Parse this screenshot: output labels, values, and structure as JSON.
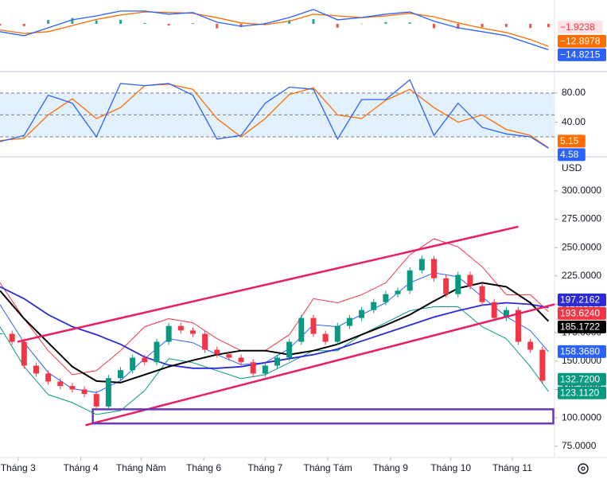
{
  "chart_data": [
    {
      "type": "line",
      "ylim": [
        -26.4,
        13.6
      ],
      "series": [
        {
          "name": "Histogram",
          "kind": "histogram",
          "color": "#f23645",
          "color_up": "#26a69a",
          "color_down": "#ef5350",
          "flag_style": "light",
          "x": [
            0,
            2,
            4,
            6,
            8,
            10,
            12,
            14,
            16,
            18,
            20,
            22,
            24,
            26,
            28,
            30,
            32,
            34,
            36,
            38,
            40,
            42,
            44,
            45.5
          ],
          "values": [
            -1,
            -1.3,
            2.2,
            3.3,
            2,
            2.3,
            0.5,
            -1,
            0.4,
            -2.6,
            -1.9,
            0.5,
            2.1,
            2.7,
            -2.2,
            0.1,
            1,
            0.8,
            -2.5,
            -2.8,
            -2,
            -1.8,
            -2.4,
            -1.9238
          ],
          "flag": {
            "value": -1.9238,
            "label": "−1.9238"
          }
        },
        {
          "name": "Signal",
          "kind": "line",
          "color": "#ff6d00",
          "x": [
            0,
            2,
            4,
            6,
            8,
            10,
            12,
            14,
            16,
            18,
            20,
            22,
            24,
            26,
            28,
            30,
            32,
            34,
            36,
            38,
            40,
            42,
            44,
            45.5
          ],
          "values": [
            -3.5,
            -5.5,
            -4.5,
            -1,
            2.5,
            5,
            6.8,
            6.5,
            6,
            3.5,
            0.5,
            -0.5,
            1.5,
            5.5,
            4.5,
            3.5,
            4.5,
            6,
            4,
            0.5,
            -2.5,
            -5,
            -9,
            -12.8978
          ],
          "flag": {
            "value": -12.8978,
            "label": "−12.8978"
          }
        },
        {
          "name": "MACD",
          "kind": "line",
          "color": "#2962ff",
          "x": [
            0,
            2,
            4,
            6,
            8,
            10,
            12,
            14,
            16,
            18,
            20,
            22,
            24,
            26,
            28,
            30,
            32,
            34,
            36,
            38,
            40,
            42,
            44,
            45.5
          ],
          "values": [
            -4.5,
            -6.8,
            -2.3,
            2.3,
            4.5,
            7.3,
            7.3,
            5.5,
            6.4,
            0.9,
            -1.4,
            0,
            3.6,
            8.2,
            2.3,
            3.6,
            5.5,
            6.8,
            1.5,
            -2.3,
            -4.5,
            -6.8,
            -11.4,
            -14.8215
          ],
          "flag": {
            "value": -14.8215,
            "label": "−14.8215"
          }
        }
      ]
    },
    {
      "type": "line",
      "ylim": [
        -5,
        107
      ],
      "yticks": [
        {
          "value": 80,
          "label": "80.00"
        },
        {
          "value": 40,
          "label": "40.00"
        }
      ],
      "levels": [
        20,
        50,
        80
      ],
      "band_color": "#e3f0fd",
      "series": [
        {
          "name": "%D",
          "kind": "line",
          "color": "#ff6d00",
          "x": [
            0,
            2,
            4,
            6,
            8,
            10,
            12,
            14,
            16,
            18,
            20,
            22,
            24,
            26,
            28,
            30,
            32,
            34,
            36,
            38,
            40,
            42,
            44,
            45.5
          ],
          "values": [
            15,
            18,
            50,
            72,
            45,
            60,
            90,
            92,
            85,
            45,
            20,
            45,
            78,
            87,
            50,
            45,
            70,
            85,
            60,
            40,
            50,
            30,
            22,
            5.15
          ],
          "flag": {
            "value": 5.15,
            "label": "5.15"
          }
        },
        {
          "name": "%K",
          "kind": "line",
          "color": "#2962ff",
          "x": [
            0,
            2,
            4,
            6,
            8,
            10,
            12,
            14,
            16,
            18,
            20,
            22,
            24,
            26,
            28,
            30,
            32,
            34,
            36,
            38,
            40,
            42,
            44,
            45.5
          ],
          "values": [
            13.5,
            22,
            77,
            66,
            20,
            93,
            90,
            93,
            77,
            17,
            22,
            66,
            88,
            85,
            17,
            71,
            71,
            98,
            22,
            66,
            33,
            24,
            20,
            4.58
          ],
          "flag": {
            "value": 4.58,
            "label": "4.58"
          }
        }
      ]
    },
    {
      "type": "candlestick",
      "unit": "USD",
      "xlim": [
        0,
        46
      ],
      "ylim": [
        65,
        328
      ],
      "yticks": [
        {
          "value": 300,
          "label": "300.0000"
        },
        {
          "value": 275,
          "label": "275.0000"
        },
        {
          "value": 250,
          "label": "250.0000"
        },
        {
          "value": 225,
          "label": "225.0000"
        },
        {
          "value": 200,
          "label": "200.0000"
        },
        {
          "value": 175,
          "label": "175.0000"
        },
        {
          "value": 150,
          "label": "150.0000"
        },
        {
          "value": 125,
          "label": "125.0000"
        },
        {
          "value": 100,
          "label": "100.0000"
        },
        {
          "value": 75,
          "label": "75.0000"
        }
      ],
      "xticks": [
        {
          "value": 1.5,
          "label": "Tháng 3"
        },
        {
          "value": 6.7,
          "label": "Tháng 4"
        },
        {
          "value": 11.7,
          "label": "Tháng Năm"
        },
        {
          "value": 16.9,
          "label": "Tháng 6"
        },
        {
          "value": 22,
          "label": "Tháng 7"
        },
        {
          "value": 27.2,
          "label": "Tháng Tám"
        },
        {
          "value": 32.4,
          "label": "Tháng 9"
        },
        {
          "value": 37.4,
          "label": "Tháng 10"
        },
        {
          "value": 42.5,
          "label": "Tháng 11"
        }
      ],
      "series": [
        {
          "name": "Upper",
          "kind": "line",
          "color": "#f23645",
          "width": 1,
          "x": [
            0,
            2,
            4,
            6,
            8,
            10,
            12,
            14,
            16,
            18,
            20,
            22,
            24,
            26,
            28,
            30,
            32,
            34,
            36,
            38,
            40,
            42,
            44,
            45.5
          ],
          "values": [
            219,
            187.4,
            159.2,
            138,
            141.6,
            159.2,
            180.3,
            187.4,
            183.8,
            169.8,
            159.2,
            159.2,
            173.3,
            205,
            201.4,
            208.5,
            219,
            243.7,
            257.8,
            250.7,
            233.1,
            208.5,
            208.5,
            193.624
          ],
          "flag": {
            "value": 193.624,
            "label": "193.6240"
          }
        },
        {
          "name": "Basis",
          "kind": "line",
          "color": "#2962ff",
          "width": 1,
          "x": [
            0,
            2,
            4,
            6,
            8,
            10,
            12,
            14,
            16,
            18,
            20,
            22,
            24,
            26,
            28,
            30,
            32,
            34,
            36,
            38,
            40,
            42,
            44,
            45.5
          ],
          "values": [
            199.7,
            166.3,
            139.9,
            125.7,
            122.3,
            132.8,
            152.2,
            169.8,
            166.2,
            155.7,
            146.9,
            148.6,
            161,
            182.1,
            180.3,
            190.9,
            201.4,
            219,
            227.8,
            224.3,
            206.7,
            189.2,
            176.8,
            158.368
          ],
          "flag": {
            "value": 158.368,
            "label": "158.3680"
          }
        },
        {
          "name": "Lower",
          "kind": "line",
          "color": "#089981",
          "width": 1,
          "x": [
            0,
            2,
            4,
            6,
            8,
            10,
            12,
            14,
            16,
            18,
            20,
            22,
            24,
            26,
            28,
            30,
            32,
            34,
            36,
            38,
            40,
            42,
            44,
            45.5
          ],
          "values": [
            180.3,
            145.1,
            120.5,
            113.4,
            102.9,
            106.4,
            124,
            152.2,
            148.6,
            141.6,
            134.6,
            138,
            148.6,
            159.2,
            159.2,
            173.3,
            183.8,
            194.4,
            197.9,
            197.9,
            180.3,
            169.8,
            145.1,
            123.112
          ],
          "flag": {
            "value": 123.112,
            "label": "123.1120"
          }
        },
        {
          "name": "MA",
          "kind": "line",
          "color": "#2a2ad6",
          "width": 1.8,
          "x": [
            0,
            2,
            4,
            6,
            8,
            10,
            12,
            14,
            16,
            18,
            20,
            22,
            24,
            26,
            28,
            30,
            32,
            34,
            36,
            38,
            40,
            42,
            44,
            45.5
          ],
          "values": [
            215.5,
            205,
            190.9,
            180.3,
            173.3,
            164.8,
            153.6,
            146.5,
            143.7,
            143.7,
            145.1,
            148.6,
            152.2,
            155.7,
            160.6,
            167.6,
            174.7,
            181.7,
            188.8,
            194.4,
            199.3,
            201.4,
            200,
            197.2162
          ],
          "flag": {
            "value": 197.2162,
            "label": "197.2162"
          }
        },
        {
          "name": "MA long",
          "kind": "line",
          "color": "#000000",
          "width": 2,
          "x": [
            0,
            2,
            4,
            6,
            8,
            10,
            12,
            14,
            16,
            18,
            20,
            22,
            24,
            26,
            28,
            30,
            32,
            34,
            36,
            38,
            40,
            42,
            44,
            45.5
          ],
          "values": [
            212,
            187.4,
            166.2,
            145.1,
            132.4,
            131,
            138,
            145.1,
            150.7,
            155.7,
            159.2,
            159.2,
            155.7,
            159.2,
            164.8,
            173.3,
            181.7,
            190.9,
            202.9,
            214.2,
            219,
            215.5,
            201.4,
            185.1722
          ],
          "flag": {
            "value": 185.1722,
            "label": "185.1722"
          }
        },
        {
          "name": "Close",
          "kind": "candle",
          "color": "#089981",
          "color_up": "#089981",
          "color_down": "#f23645",
          "x": [
            0,
            1,
            2,
            3,
            4,
            5,
            6,
            7,
            8,
            9,
            10,
            11,
            12,
            13,
            14,
            15,
            16,
            17,
            18,
            19,
            20,
            21,
            22,
            23,
            24,
            25,
            26,
            27,
            28,
            29,
            30,
            31,
            32,
            33,
            34,
            35,
            36,
            37,
            38,
            39,
            40,
            41,
            42,
            43,
            44,
            45
          ],
          "values": [
            174,
            167,
            146,
            139,
            132,
            128,
            125,
            121,
            110,
            135,
            142,
            153,
            149,
            167,
            181,
            177,
            174,
            160,
            156,
            153,
            149,
            139,
            146,
            153,
            167,
            188,
            174,
            167,
            181,
            188,
            195,
            202,
            209,
            212,
            230,
            240,
            223,
            209,
            226,
            216,
            202,
            188,
            195,
            167,
            160,
            132.72
          ],
          "flag": {
            "value": 132.72,
            "label": "132.7200"
          }
        }
      ],
      "shapes": [
        {
          "kind": "trendline",
          "color": "#e91e63",
          "x": [
            1.45,
            43.0
          ],
          "values": [
            167,
            268.5
          ]
        },
        {
          "kind": "trendline",
          "color": "#e91e63",
          "x": [
            7.1,
            46
          ],
          "values": [
            93.5,
            200
          ]
        },
        {
          "kind": "rectangle",
          "color": "#673ab7",
          "x": [
            7.7,
            45.9
          ],
          "values": [
            107.5,
            95
          ]
        }
      ]
    }
  ]
}
